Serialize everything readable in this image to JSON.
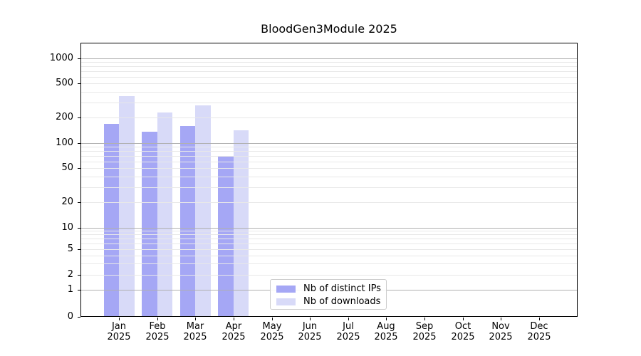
{
  "chart_data": {
    "type": "bar",
    "title": "BloodGen3Module 2025",
    "categories": [
      "Jan",
      "Feb",
      "Mar",
      "Apr",
      "May",
      "Jun",
      "Jul",
      "Aug",
      "Sep",
      "Oct",
      "Nov",
      "Dec"
    ],
    "xtick_year": "2025",
    "series": [
      {
        "name": "Nb of distinct IPs",
        "color": "#a5a7f5",
        "values": [
          168,
          135,
          159,
          70,
          0,
          0,
          0,
          0,
          0,
          0,
          0,
          0
        ]
      },
      {
        "name": "Nb of downloads",
        "color": "#d8daf8",
        "values": [
          355,
          228,
          278,
          140,
          0,
          0,
          0,
          0,
          0,
          0,
          0,
          0
        ]
      }
    ],
    "yticks": [
      0,
      1,
      2,
      5,
      10,
      20,
      50,
      100,
      200,
      500,
      1000
    ],
    "yscale": "symlog",
    "ylim": [
      0,
      1480
    ],
    "grid": true,
    "legend_position": "lower-center"
  },
  "colors": {
    "grid_major": "#b0b0b0",
    "grid_minor": "#e8e8e8",
    "axis": "#000000",
    "background": "#ffffff"
  }
}
